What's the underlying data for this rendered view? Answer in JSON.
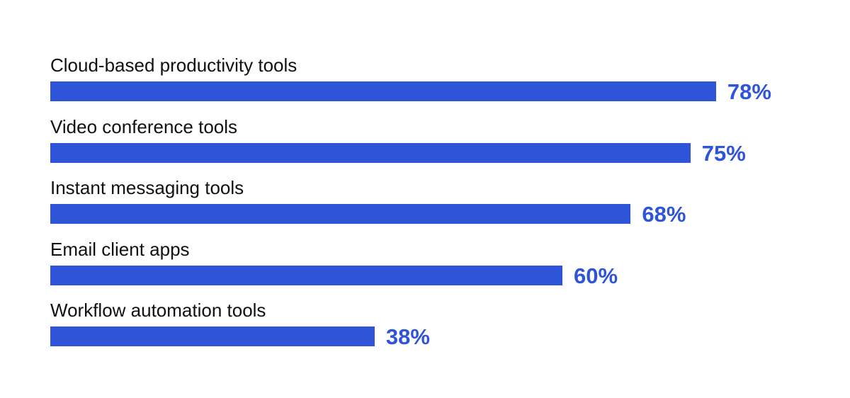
{
  "chart_data": {
    "type": "bar",
    "orientation": "horizontal",
    "categories": [
      "Cloud-based productivity tools",
      "Video conference tools",
      "Instant messaging tools",
      "Email client apps",
      "Workflow automation tools"
    ],
    "values": [
      78,
      75,
      68,
      60,
      38
    ],
    "value_labels": [
      "78%",
      "75%",
      "68%",
      "60%",
      "38%"
    ],
    "unit": "%",
    "title": "",
    "xlabel": "",
    "ylabel": "",
    "xlim": [
      0,
      100
    ],
    "grid": false,
    "legend": "none",
    "bar_color": "#2E54D8",
    "label_color": "#2E54D8",
    "category_text_color": "#111111"
  }
}
